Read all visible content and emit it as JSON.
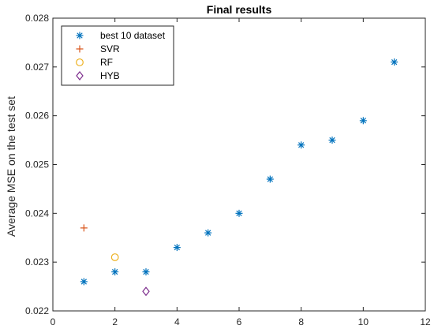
{
  "chart_data": {
    "type": "scatter",
    "title": "Final results",
    "xlabel": "",
    "ylabel": "Average MSE on the test set",
    "xlim": [
      0,
      12
    ],
    "ylim": [
      0.022,
      0.028
    ],
    "xticks": [
      0,
      2,
      4,
      6,
      8,
      10,
      12
    ],
    "yticks": [
      0.022,
      0.023,
      0.024,
      0.025,
      0.026,
      0.027,
      0.028
    ],
    "grid": false,
    "legend_position": "top-left",
    "series": [
      {
        "name": "best 10 dataset",
        "marker": "asterisk",
        "color": "#0072BD",
        "points": [
          {
            "x": 1,
            "y": 0.0226
          },
          {
            "x": 2,
            "y": 0.0228
          },
          {
            "x": 3,
            "y": 0.0228
          },
          {
            "x": 4,
            "y": 0.0233
          },
          {
            "x": 5,
            "y": 0.0236
          },
          {
            "x": 6,
            "y": 0.024
          },
          {
            "x": 7,
            "y": 0.0247
          },
          {
            "x": 8,
            "y": 0.0254
          },
          {
            "x": 9,
            "y": 0.0255
          },
          {
            "x": 10,
            "y": 0.0259
          },
          {
            "x": 11,
            "y": 0.0271
          }
        ]
      },
      {
        "name": "SVR",
        "marker": "plus",
        "color": "#D95319",
        "points": [
          {
            "x": 1,
            "y": 0.0237
          }
        ]
      },
      {
        "name": "RF",
        "marker": "circle",
        "color": "#EDB120",
        "points": [
          {
            "x": 2,
            "y": 0.0231
          }
        ]
      },
      {
        "name": "HYB",
        "marker": "diamond",
        "color": "#7E2F8E",
        "points": [
          {
            "x": 3,
            "y": 0.0224
          }
        ]
      }
    ]
  }
}
